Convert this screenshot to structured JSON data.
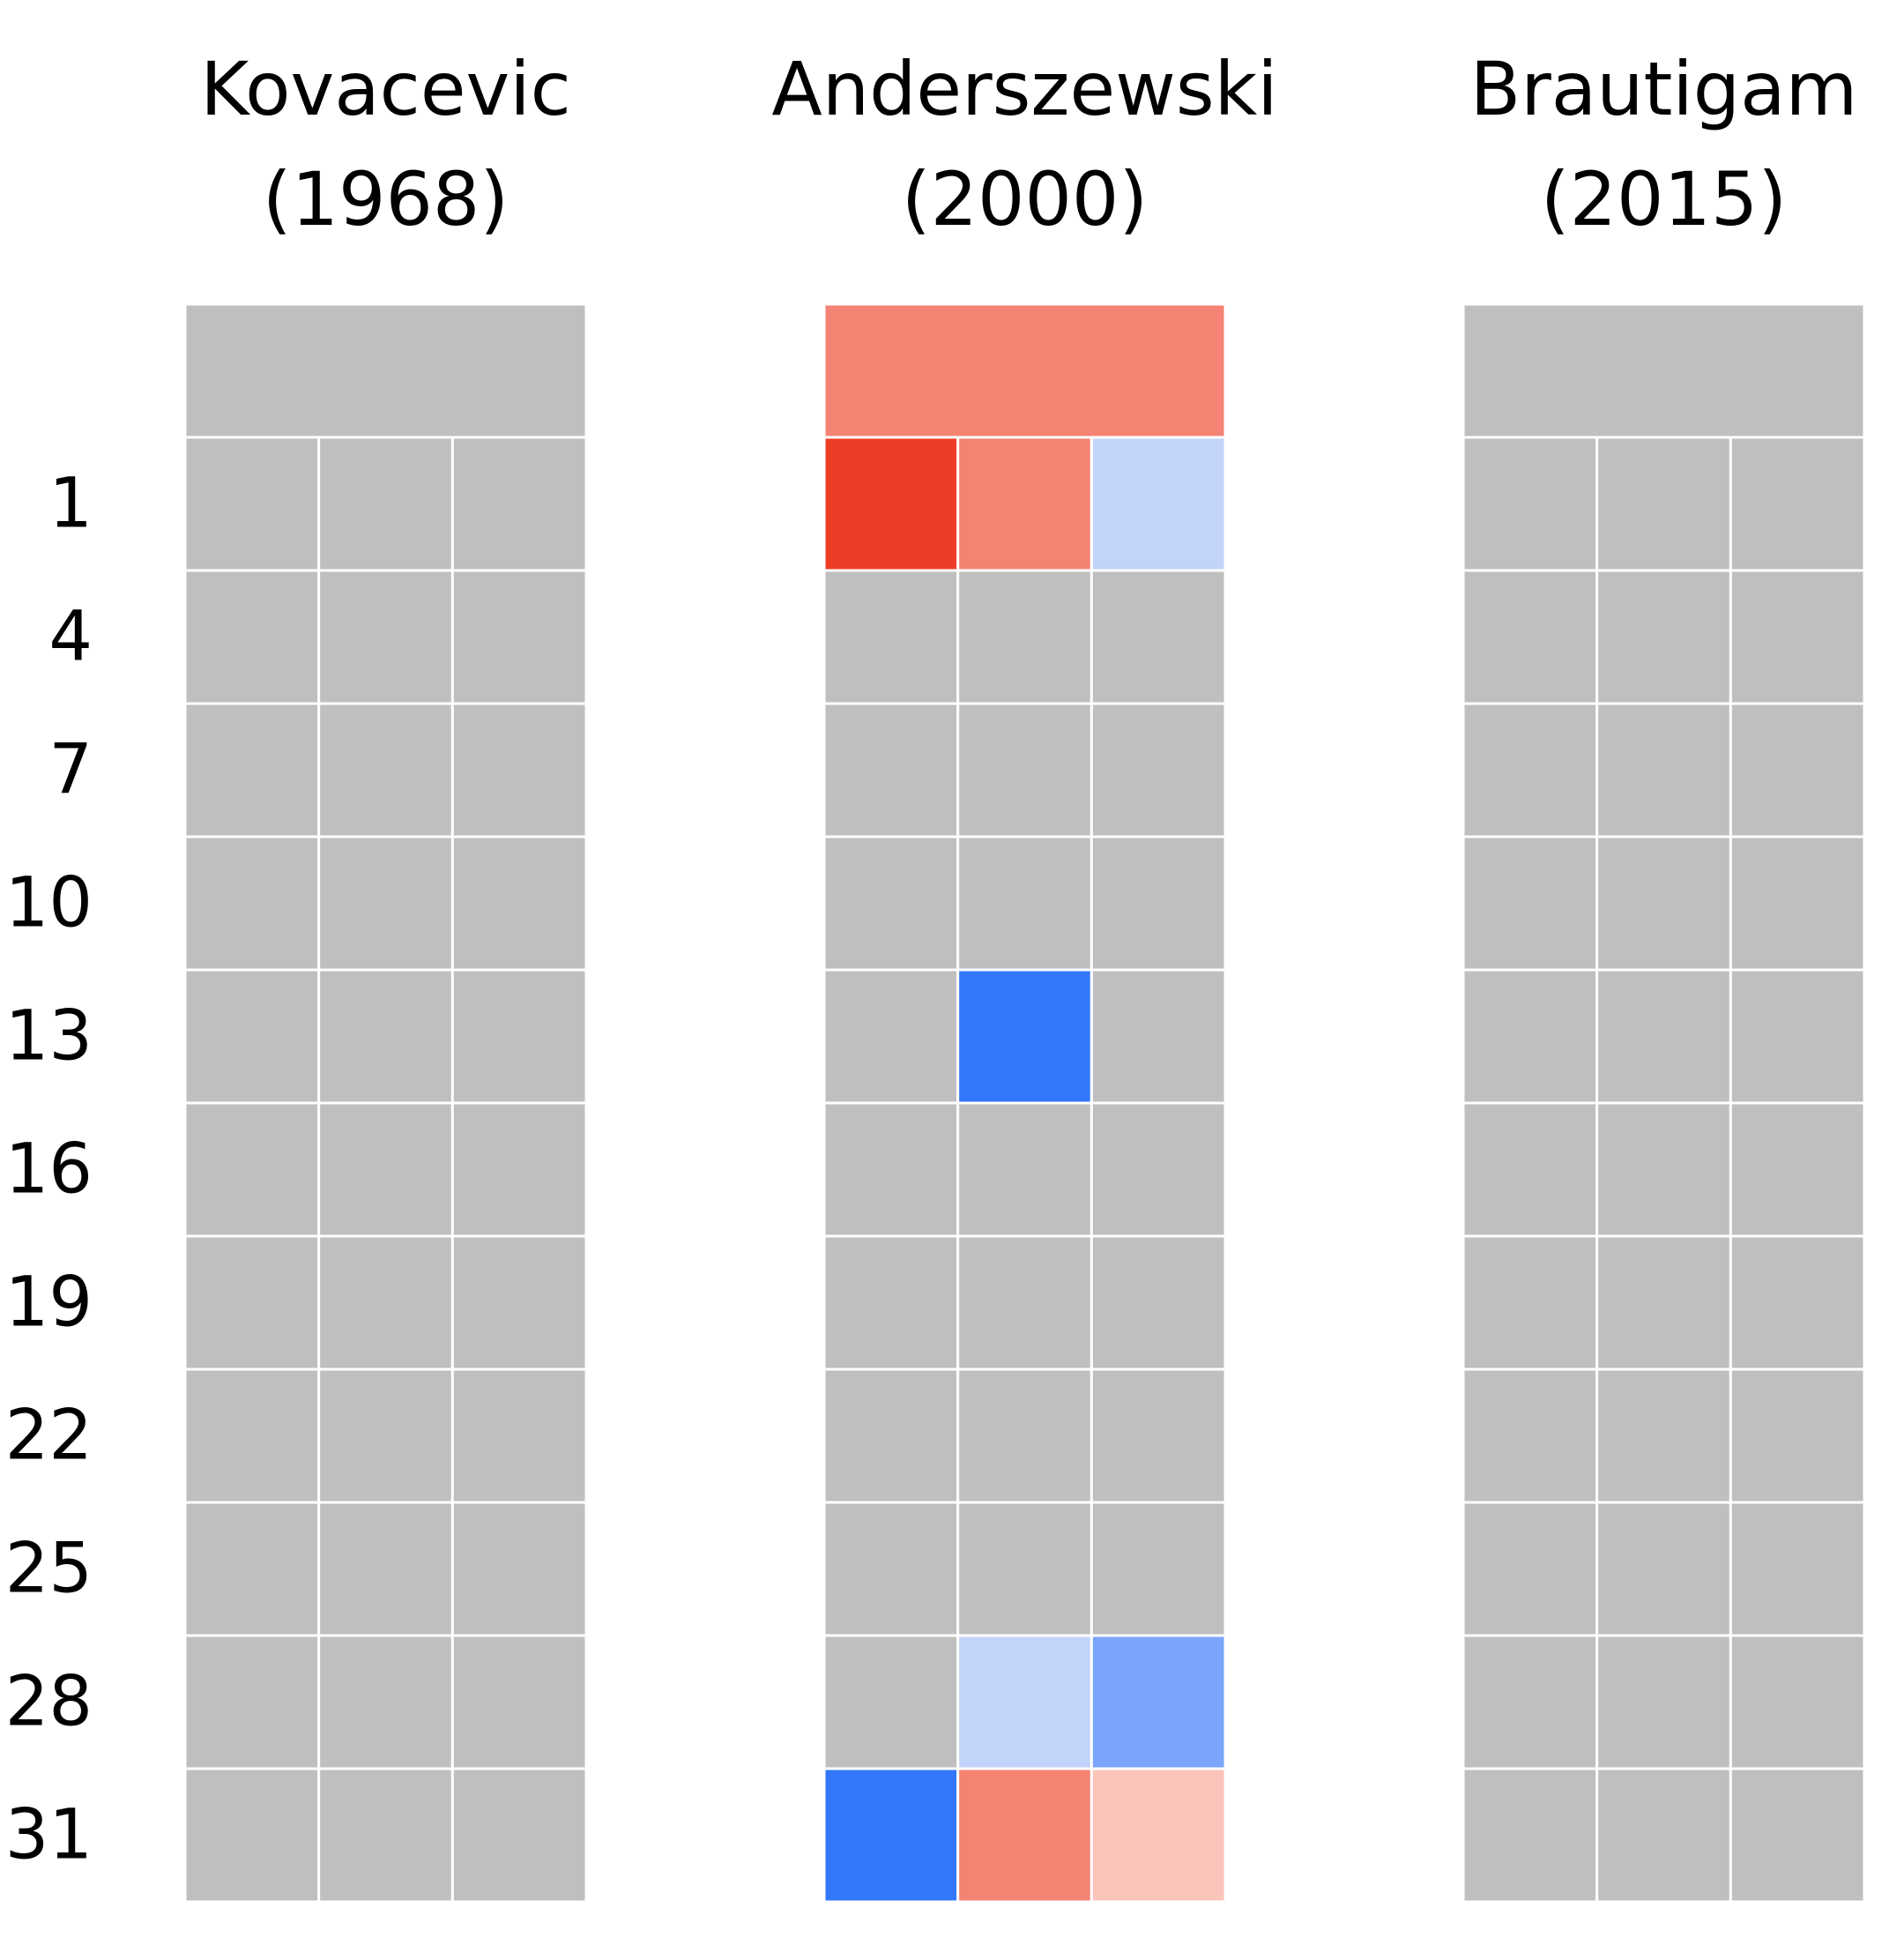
{
  "chart_data": {
    "type": "heatmap",
    "row_labels": [
      "1",
      "4",
      "7",
      "10",
      "13",
      "16",
      "19",
      "22",
      "25",
      "28",
      "31"
    ],
    "colors": {
      "missing": "#bfbfbf",
      "grid_line": "#ffffff",
      "red_strong": "#ee3d27",
      "red_medium": "#f48374",
      "red_light": "#fbc4bb",
      "blue_light": "#c3d4fb",
      "blue_medium": "#7aa5fa",
      "blue_strong": "#3377fa"
    },
    "panels": [
      {
        "title_line1": "Kovacevic",
        "title_line2": "(1968)",
        "header": "missing",
        "cells": [
          [
            "missing",
            "missing",
            "missing"
          ],
          [
            "missing",
            "missing",
            "missing"
          ],
          [
            "missing",
            "missing",
            "missing"
          ],
          [
            "missing",
            "missing",
            "missing"
          ],
          [
            "missing",
            "missing",
            "missing"
          ],
          [
            "missing",
            "missing",
            "missing"
          ],
          [
            "missing",
            "missing",
            "missing"
          ],
          [
            "missing",
            "missing",
            "missing"
          ],
          [
            "missing",
            "missing",
            "missing"
          ],
          [
            "missing",
            "missing",
            "missing"
          ],
          [
            "missing",
            "missing",
            "missing"
          ]
        ]
      },
      {
        "title_line1": "Anderszewski",
        "title_line2": "(2000)",
        "header": "red_medium",
        "cells": [
          [
            "red_strong",
            "red_medium",
            "blue_light"
          ],
          [
            "missing",
            "missing",
            "missing"
          ],
          [
            "missing",
            "missing",
            "missing"
          ],
          [
            "missing",
            "missing",
            "missing"
          ],
          [
            "missing",
            "blue_strong",
            "missing"
          ],
          [
            "missing",
            "missing",
            "missing"
          ],
          [
            "missing",
            "missing",
            "missing"
          ],
          [
            "missing",
            "missing",
            "missing"
          ],
          [
            "missing",
            "missing",
            "missing"
          ],
          [
            "missing",
            "blue_light",
            "blue_medium"
          ],
          [
            "blue_strong",
            "red_medium",
            "red_light"
          ]
        ]
      },
      {
        "title_line1": "Brautigam",
        "title_line2": "(2015)",
        "header": "missing",
        "cells": [
          [
            "missing",
            "missing",
            "missing"
          ],
          [
            "missing",
            "missing",
            "missing"
          ],
          [
            "missing",
            "missing",
            "missing"
          ],
          [
            "missing",
            "missing",
            "missing"
          ],
          [
            "missing",
            "missing",
            "missing"
          ],
          [
            "missing",
            "missing",
            "missing"
          ],
          [
            "missing",
            "missing",
            "missing"
          ],
          [
            "missing",
            "missing",
            "missing"
          ],
          [
            "missing",
            "missing",
            "missing"
          ],
          [
            "missing",
            "missing",
            "missing"
          ],
          [
            "missing",
            "missing",
            "missing"
          ]
        ]
      }
    ]
  }
}
